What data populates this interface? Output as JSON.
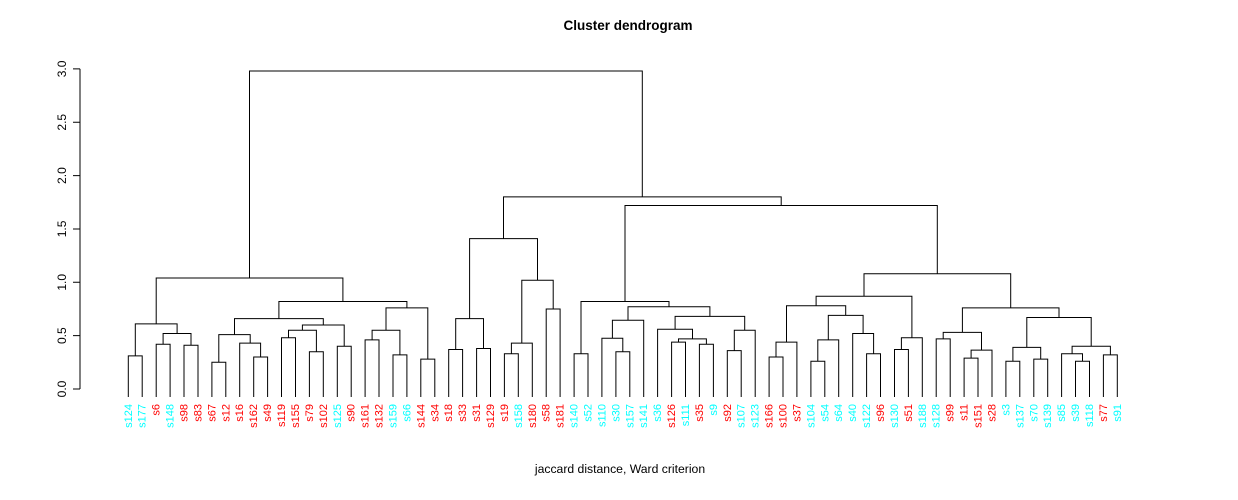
{
  "title": "Cluster dendrogram",
  "subtitle": "jaccard distance, Ward criterion",
  "colors": {
    "line": "#000000",
    "red_label": "#FF0000",
    "cyan_label": "#00FFFF",
    "background": "#FFFFFF"
  },
  "chart_data": {
    "type": "dendrogram",
    "title": "Cluster dendrogram",
    "xlabel": "jaccard distance, Ward criterion",
    "ylabel": "",
    "ylim": [
      0.0,
      3.0
    ],
    "yticks": [
      "0.0",
      "0.5",
      "1.0",
      "1.5",
      "2.0",
      "2.5",
      "3.0"
    ],
    "grid": false,
    "legend": "none",
    "leaves": [
      {
        "label": "s124",
        "color": "cyan"
      },
      {
        "label": "s177",
        "color": "cyan"
      },
      {
        "label": "s6",
        "color": "red"
      },
      {
        "label": "s148",
        "color": "cyan"
      },
      {
        "label": "s98",
        "color": "red"
      },
      {
        "label": "s83",
        "color": "red"
      },
      {
        "label": "s67",
        "color": "red"
      },
      {
        "label": "s12",
        "color": "red"
      },
      {
        "label": "s16",
        "color": "red"
      },
      {
        "label": "s162",
        "color": "red"
      },
      {
        "label": "s49",
        "color": "red"
      },
      {
        "label": "s119",
        "color": "red"
      },
      {
        "label": "s155",
        "color": "red"
      },
      {
        "label": "s79",
        "color": "red"
      },
      {
        "label": "s102",
        "color": "red"
      },
      {
        "label": "s125",
        "color": "cyan"
      },
      {
        "label": "s90",
        "color": "red"
      },
      {
        "label": "s161",
        "color": "red"
      },
      {
        "label": "s132",
        "color": "red"
      },
      {
        "label": "s159",
        "color": "cyan"
      },
      {
        "label": "s66",
        "color": "cyan"
      },
      {
        "label": "s144",
        "color": "red"
      },
      {
        "label": "s34",
        "color": "red"
      },
      {
        "label": "s18",
        "color": "red"
      },
      {
        "label": "s33",
        "color": "red"
      },
      {
        "label": "s31",
        "color": "red"
      },
      {
        "label": "s129",
        "color": "red"
      },
      {
        "label": "s19",
        "color": "red"
      },
      {
        "label": "s158",
        "color": "cyan"
      },
      {
        "label": "s180",
        "color": "red"
      },
      {
        "label": "s58",
        "color": "red"
      },
      {
        "label": "s181",
        "color": "red"
      },
      {
        "label": "s140",
        "color": "cyan"
      },
      {
        "label": "s52",
        "color": "cyan"
      },
      {
        "label": "s110",
        "color": "cyan"
      },
      {
        "label": "s30",
        "color": "cyan"
      },
      {
        "label": "s157",
        "color": "cyan"
      },
      {
        "label": "s141",
        "color": "cyan"
      },
      {
        "label": "s36",
        "color": "cyan"
      },
      {
        "label": "s126",
        "color": "red"
      },
      {
        "label": "s111",
        "color": "cyan"
      },
      {
        "label": "s35",
        "color": "red"
      },
      {
        "label": "s9",
        "color": "cyan"
      },
      {
        "label": "s92",
        "color": "red"
      },
      {
        "label": "s107",
        "color": "cyan"
      },
      {
        "label": "s123",
        "color": "cyan"
      },
      {
        "label": "s166",
        "color": "red"
      },
      {
        "label": "s100",
        "color": "red"
      },
      {
        "label": "s37",
        "color": "red"
      },
      {
        "label": "s104",
        "color": "cyan"
      },
      {
        "label": "s54",
        "color": "cyan"
      },
      {
        "label": "s64",
        "color": "cyan"
      },
      {
        "label": "s40",
        "color": "cyan"
      },
      {
        "label": "s122",
        "color": "cyan"
      },
      {
        "label": "s96",
        "color": "red"
      },
      {
        "label": "s130",
        "color": "cyan"
      },
      {
        "label": "s51",
        "color": "red"
      },
      {
        "label": "s188",
        "color": "cyan"
      },
      {
        "label": "s128",
        "color": "cyan"
      },
      {
        "label": "s99",
        "color": "red"
      },
      {
        "label": "s11",
        "color": "red"
      },
      {
        "label": "s151",
        "color": "red"
      },
      {
        "label": "s28",
        "color": "red"
      },
      {
        "label": "s3",
        "color": "cyan"
      },
      {
        "label": "s137",
        "color": "cyan"
      },
      {
        "label": "s70",
        "color": "cyan"
      },
      {
        "label": "s139",
        "color": "cyan"
      },
      {
        "label": "s85",
        "color": "cyan"
      },
      {
        "label": "s39",
        "color": "cyan"
      },
      {
        "label": "s118",
        "color": "cyan"
      },
      {
        "label": "s77",
        "color": "red"
      },
      {
        "label": "s91",
        "color": "cyan"
      }
    ],
    "merges": [
      2.98,
      [
        1.04,
        [
          0.61,
          [
            0.31,
            0,
            1
          ],
          [
            0.52,
            [
              0.42,
              2,
              3
            ],
            [
              0.41,
              4,
              5
            ]
          ]
        ],
        [
          0.82,
          [
            0.66,
            [
              0.51,
              [
                0.25,
                6,
                7
              ],
              [
                0.43,
                8,
                [
                  0.3,
                  9,
                  10
                ]
              ]
            ],
            [
              0.6,
              [
                0.55,
                [
                  0.48,
                  11,
                  12
                ],
                [
                  0.35,
                  13,
                  14
                ]
              ],
              [
                0.4,
                15,
                16
              ]
            ]
          ],
          [
            0.76,
            [
              0.55,
              [
                0.46,
                17,
                18
              ],
              [
                0.32,
                19,
                20
              ]
            ],
            [
              0.28,
              21,
              22
            ]
          ]
        ]
      ],
      [
        1.8,
        [
          1.41,
          [
            0.66,
            [
              0.37,
              23,
              24
            ],
            [
              0.38,
              25,
              26
            ]
          ],
          [
            1.02,
            [
              0.43,
              [
                0.33,
                27,
                28
              ],
              29
            ],
            [
              0.75,
              30,
              31
            ]
          ]
        ],
        [
          1.72,
          [
            0.82,
            [
              0.33,
              32,
              33
            ],
            [
              0.77,
              [
                0.645,
                [
                  0.475,
                  34,
                  [
                    0.35,
                    35,
                    36
                  ]
                ],
                37
              ],
              [
                0.68,
                [
                  0.56,
                  38,
                  [
                    0.47,
                    [
                      0.44,
                      39,
                      40
                    ],
                    [
                      0.42,
                      41,
                      42
                    ]
                  ]
                ],
                [
                  0.55,
                  [
                    0.36,
                    43,
                    44
                  ],
                  45
                ]
              ]
            ]
          ],
          [
            1.08,
            [
              0.87,
              [
                0.78,
                [
                  0.44,
                  [
                    0.3,
                    46,
                    47
                  ],
                  48
                ],
                [
                  0.69,
                  [
                    0.46,
                    [
                      0.26,
                      49,
                      50
                    ],
                    51
                  ],
                  [
                    0.52,
                    52,
                    [
                      0.33,
                      53,
                      54
                    ]
                  ]
                ]
              ],
              [
                0.48,
                [
                  0.37,
                  55,
                  56
                ],
                57
              ]
            ],
            [
              0.76,
              [
                0.53,
                [
                  0.47,
                  58,
                  59
                ],
                [
                  0.365,
                  [
                    0.29,
                    60,
                    61
                  ],
                  62
                ]
              ],
              [
                0.67,
                [
                  0.39,
                  [
                    0.26,
                    63,
                    64
                  ],
                  [
                    0.28,
                    65,
                    66
                  ]
                ],
                [
                  0.4,
                  [
                    0.33,
                    67,
                    [
                      0.26,
                      68,
                      69
                    ]
                  ],
                  [
                    0.32,
                    70,
                    71
                  ]
                ]
              ]
            ]
          ]
        ]
      ]
    ]
  }
}
